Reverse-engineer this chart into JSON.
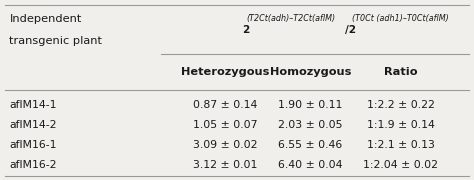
{
  "col_headers": [
    "Heterozygous",
    "Homozygous",
    "Ratio"
  ],
  "row_label_header1": "Independent",
  "row_label_header2": "transgenic plant",
  "big_header_base": "2",
  "big_header_sup1": "(T2Ct(adh)–T2Ct(aflM)",
  "big_header_mid": "/2",
  "big_header_sup2": "(T0Ct (adh1)–T0Ct(aflM)",
  "rows": [
    [
      "aflM14-1",
      "0.87 ± 0.14",
      "1.90 ± 0.11",
      "1:2.2 ± 0.22"
    ],
    [
      "aflM14-2",
      "1.05 ± 0.07",
      "2.03 ± 0.05",
      "1:1.9 ± 0.14"
    ],
    [
      "aflM16-1",
      "3.09 ± 0.02",
      "6.55 ± 0.46",
      "1:2.1 ± 0.13"
    ],
    [
      "aflM16-2",
      "3.12 ± 0.01",
      "6.40 ± 0.04",
      "1:2.04 ± 0.02"
    ]
  ],
  "bg_color": "#f0efeb",
  "line_color": "#999999",
  "text_color": "#1a1a1a",
  "font_size": 7.8,
  "font_size_header": 8.2,
  "font_size_big_header": 7.5,
  "font_size_sup": 5.8
}
